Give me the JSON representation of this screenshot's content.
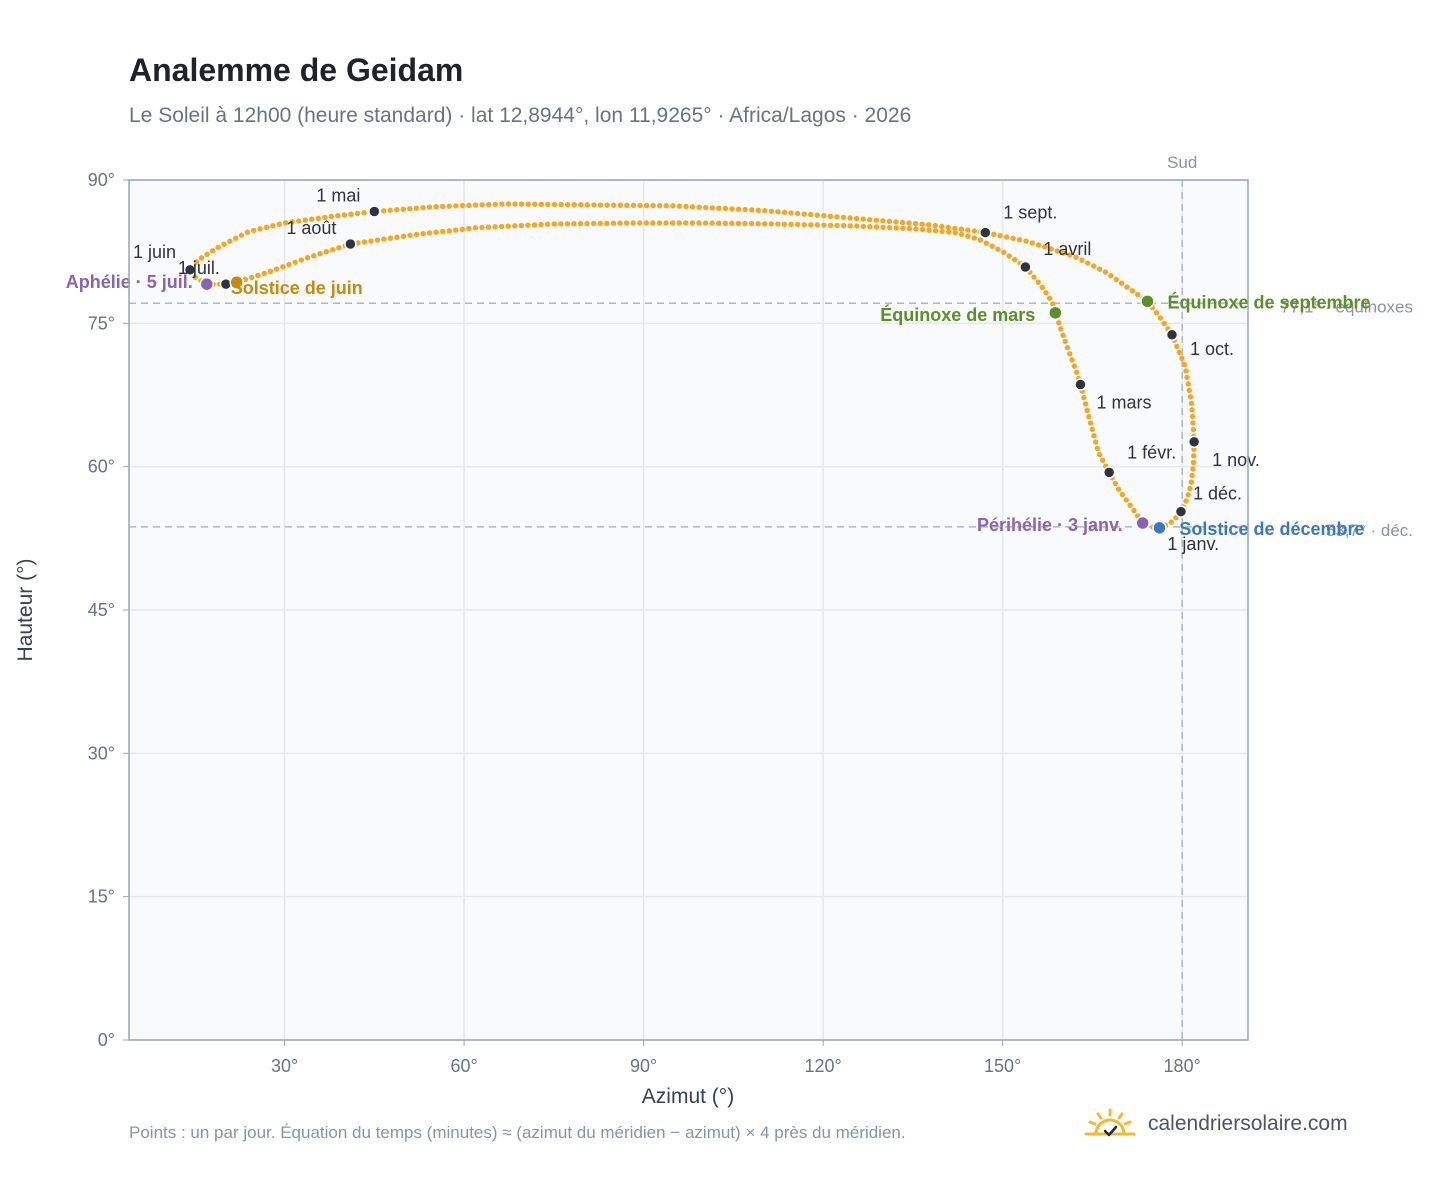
{
  "title": "Analemme de Geidam",
  "subtitle": "Le Soleil à 12h00 (heure standard) · lat 12,8944°, lon 11,9265° · Africa/Lagos · 2026",
  "footnote": "Points : un par jour. Équation du temps (minutes) ≈ (azimut du méridien − azimut) × 4 près du méridien.",
  "brand": {
    "name": "calendriersolaire.com",
    "icon": "sun-check-icon",
    "color": "#f5b82e"
  },
  "chart_data": {
    "type": "scatter",
    "xlabel": "Azimut (°)",
    "ylabel": "Hauteur (°)",
    "xlim": [
      4,
      191
    ],
    "ylim": [
      0,
      90
    ],
    "xticks": [
      30,
      60,
      90,
      120,
      150,
      180
    ],
    "yticks": [
      0,
      15,
      30,
      45,
      60,
      75,
      90
    ],
    "xtick_labels": [
      "30°",
      "60°",
      "90°",
      "120°",
      "150°",
      "180°"
    ],
    "ytick_labels": [
      "0°",
      "15°",
      "30°",
      "45°",
      "60°",
      "75°",
      "90°"
    ],
    "grid": true,
    "colors": {
      "series": "#f5a623",
      "month": "#2d3440",
      "equinox": "#5a8f29",
      "solstice_june": "#c98a09",
      "solstice_december": "#3a78c2",
      "apsis": "#8a63b5",
      "reference": "#aeb8c4",
      "plot_bg": "#f8fafc",
      "frame": "#9aa5b1"
    },
    "south_line": {
      "azimuth": 180,
      "label": "Sud"
    },
    "reference_lines": [
      {
        "altitude": 77.1,
        "label": "77,1° · équinoxes"
      },
      {
        "altitude": 53.7,
        "label": "53,7° · déc."
      }
    ],
    "series": [
      {
        "name": "",
        "path_knots": [
          [
            176.2,
            53.6
          ],
          [
            176.8,
            53.7
          ],
          [
            178.5,
            54.3
          ],
          [
            179.8,
            55.3
          ],
          [
            180.8,
            56.6
          ],
          [
            181.5,
            58.2
          ],
          [
            181.9,
            60.4
          ],
          [
            182.0,
            62.6
          ],
          [
            181.6,
            66.5
          ],
          [
            180.5,
            70.5
          ],
          [
            178.3,
            73.8
          ],
          [
            176.1,
            75.8
          ],
          [
            174.2,
            77.3
          ],
          [
            171.0,
            78.7
          ],
          [
            167.4,
            80.3
          ],
          [
            162.0,
            82.0
          ],
          [
            154.0,
            83.6
          ],
          [
            147.1,
            84.5
          ],
          [
            138.0,
            85.3
          ],
          [
            125.0,
            86.0
          ],
          [
            110.0,
            86.8
          ],
          [
            95.0,
            87.3
          ],
          [
            80.0,
            87.4
          ],
          [
            67.0,
            87.5
          ],
          [
            55.0,
            87.2
          ],
          [
            45.0,
            86.7
          ],
          [
            38.0,
            86.2
          ],
          [
            30.0,
            85.5
          ],
          [
            24.0,
            84.6
          ],
          [
            19.0,
            83.0
          ],
          [
            15.5,
            81.6
          ],
          [
            14.2,
            80.6
          ],
          [
            14.6,
            80.0
          ],
          [
            17.0,
            79.1
          ],
          [
            20.2,
            79.1
          ],
          [
            22.0,
            79.3
          ],
          [
            27.0,
            80.3
          ],
          [
            34.0,
            81.9
          ],
          [
            41.0,
            83.3
          ],
          [
            52.0,
            84.3
          ],
          [
            62.0,
            85.0
          ],
          [
            75.0,
            85.4
          ],
          [
            88.0,
            85.5
          ],
          [
            100.0,
            85.5
          ],
          [
            112.0,
            85.4
          ],
          [
            125.0,
            85.2
          ],
          [
            135.0,
            84.9
          ],
          [
            142.0,
            84.5
          ],
          [
            146.0,
            83.8
          ],
          [
            150.0,
            82.5
          ],
          [
            153.8,
            80.9
          ],
          [
            156.5,
            78.9
          ],
          [
            158.3,
            77.2
          ],
          [
            158.8,
            76.1
          ],
          [
            160.5,
            73.0
          ],
          [
            162.3,
            70.0
          ],
          [
            163.0,
            68.6
          ],
          [
            164.5,
            65.0
          ],
          [
            166.0,
            61.5
          ],
          [
            167.8,
            59.4
          ],
          [
            169.5,
            57.5
          ],
          [
            171.5,
            55.8
          ],
          [
            173.4,
            54.1
          ],
          [
            174.8,
            53.7
          ],
          [
            176.2,
            53.6
          ]
        ]
      }
    ],
    "month_markers": [
      {
        "label": "1 janv.",
        "az": 176.2,
        "alt": 53.6
      },
      {
        "label": "1 févr.",
        "az": 167.8,
        "alt": 59.4
      },
      {
        "label": "1 mars",
        "az": 163.0,
        "alt": 68.6
      },
      {
        "label": "1 avril",
        "az": 153.8,
        "alt": 80.9
      },
      {
        "label": "1 mai",
        "az": 45.0,
        "alt": 86.7
      },
      {
        "label": "1 juin",
        "az": 14.2,
        "alt": 80.6
      },
      {
        "label": "1 juil.",
        "az": 20.2,
        "alt": 79.1
      },
      {
        "label": "1 août",
        "az": 41.0,
        "alt": 83.3
      },
      {
        "label": "1 sept.",
        "az": 147.1,
        "alt": 84.5
      },
      {
        "label": "1 oct.",
        "az": 178.3,
        "alt": 73.8
      },
      {
        "label": "1 nov.",
        "az": 182.0,
        "alt": 62.6
      },
      {
        "label": "1 déc.",
        "az": 179.8,
        "alt": 55.3
      }
    ],
    "events": [
      {
        "label": "Équinoxe de mars",
        "az": 158.8,
        "alt": 76.1,
        "kind": "equinox"
      },
      {
        "label": "Équinoxe de septembre",
        "az": 174.2,
        "alt": 77.3,
        "kind": "equinox"
      },
      {
        "label": "Solstice de juin",
        "az": 22.0,
        "alt": 79.3,
        "kind": "solstice_june"
      },
      {
        "label": "Solstice de décembre",
        "az": 176.2,
        "alt": 53.6,
        "kind": "solstice_december"
      },
      {
        "label": "Aphélie · 5 juil.",
        "az": 17.0,
        "alt": 79.1,
        "kind": "apsis"
      },
      {
        "label": "Périhélie · 3 janv.",
        "az": 173.4,
        "alt": 54.1,
        "kind": "apsis"
      }
    ]
  }
}
